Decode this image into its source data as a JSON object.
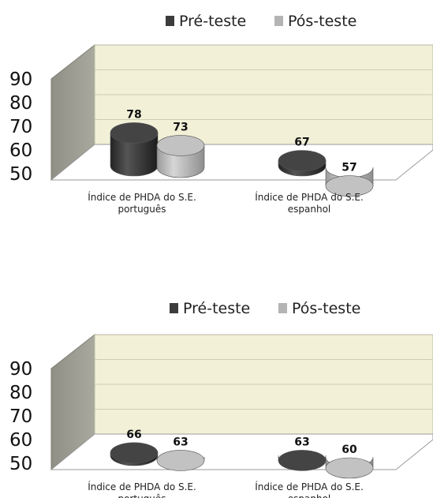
{
  "chart_data": [
    {
      "type": "bar",
      "title": "",
      "xlabel": "",
      "ylabel": "",
      "ylim": [
        50,
        90
      ],
      "yticks": [
        "90",
        "80",
        "70",
        "60",
        "50"
      ],
      "legend_position": "top",
      "categories": [
        [
          "Índice de PHDA do S.E.",
          "português"
        ],
        [
          "Índice de PHDA do S.E.",
          "espanhol"
        ]
      ],
      "series": [
        {
          "name": "Pré-teste",
          "values": [
            78,
            67
          ],
          "color": "#3c3c3c"
        },
        {
          "name": "Pós-teste",
          "values": [
            73,
            57
          ],
          "color": "#b4b4b4"
        }
      ],
      "data_labels": [
        [
          "78",
          "67"
        ],
        [
          "73",
          "57"
        ]
      ]
    },
    {
      "type": "bar",
      "title": "",
      "xlabel": "",
      "ylabel": "",
      "ylim": [
        50,
        90
      ],
      "yticks": [
        "90",
        "80",
        "70",
        "60",
        "50"
      ],
      "legend_position": "top",
      "categories": [
        [
          "Índice de PHDA do S.E.",
          "português"
        ],
        [
          "Índice de PHDA do S.E.",
          "espanhol"
        ]
      ],
      "series": [
        {
          "name": "Pré-teste",
          "values": [
            66,
            63
          ],
          "color": "#3c3c3c"
        },
        {
          "name": "Pós-teste",
          "values": [
            63,
            60
          ],
          "color": "#b4b4b4"
        }
      ],
      "data_labels": [
        [
          "66",
          "63"
        ],
        [
          "63",
          "60"
        ]
      ]
    }
  ]
}
